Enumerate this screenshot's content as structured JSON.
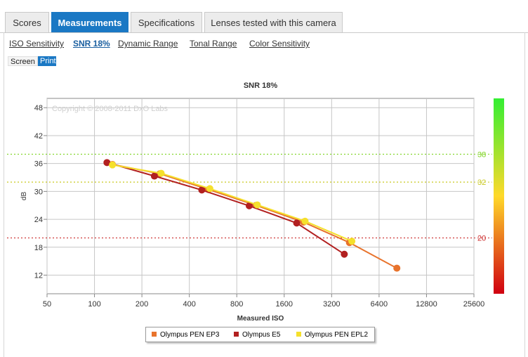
{
  "tabs": [
    {
      "label": "Scores",
      "active": false
    },
    {
      "label": "Measurements",
      "active": true
    },
    {
      "label": "Specifications",
      "active": false
    },
    {
      "label": "Lenses tested with this camera",
      "active": false
    }
  ],
  "subnav": [
    {
      "label": "ISO Sensitivity",
      "active": false
    },
    {
      "label": "SNR 18%",
      "active": true
    },
    {
      "label": "Dynamic Range",
      "active": false
    },
    {
      "label": "Tonal Range",
      "active": false
    },
    {
      "label": "Color Sensitivity",
      "active": false
    }
  ],
  "view_modes": {
    "screen": "Screen",
    "print": "Print",
    "selected": "Print"
  },
  "chart_data": {
    "type": "line",
    "title": "SNR 18%",
    "xlabel": "Measured ISO",
    "ylabel": "dB",
    "watermark": "Copyright © 2008-2011 DxO Labs",
    "x_scale": "log2",
    "xlim": [
      50,
      25600
    ],
    "ylim": [
      8,
      50
    ],
    "xticks": [
      50,
      100,
      200,
      400,
      800,
      1600,
      3200,
      6400,
      12800,
      25600
    ],
    "yticks": [
      12,
      18,
      24,
      30,
      36,
      42,
      48
    ],
    "grid": true,
    "legend_position": "bottom",
    "series": [
      {
        "name": "Olympus PEN EP3",
        "color": "#e8732c",
        "points": [
          [
            130,
            35.8
          ],
          [
            260,
            33.8
          ],
          [
            530,
            30.4
          ],
          [
            1060,
            27.0
          ],
          [
            2120,
            23.4
          ],
          [
            4150,
            19.0
          ],
          [
            8300,
            13.5
          ]
        ]
      },
      {
        "name": "Olympus E5",
        "color": "#b22020",
        "points": [
          [
            120,
            36.2
          ],
          [
            240,
            33.3
          ],
          [
            480,
            30.3
          ],
          [
            960,
            26.9
          ],
          [
            1920,
            23.2
          ],
          [
            3850,
            16.5
          ]
        ]
      },
      {
        "name": "Olympus PEN EPL2",
        "color": "#f5e02c",
        "points": [
          [
            130,
            35.7
          ],
          [
            265,
            33.9
          ],
          [
            540,
            30.6
          ],
          [
            1080,
            27.1
          ],
          [
            2170,
            23.6
          ],
          [
            4300,
            19.3
          ]
        ]
      }
    ],
    "reference_lines": [
      {
        "value": 38,
        "label": "38",
        "color": "#7ed321"
      },
      {
        "value": 32,
        "label": "32",
        "color": "#c8c81e"
      },
      {
        "value": 20,
        "label": "20",
        "color": "#cc2a2a"
      }
    ],
    "color_scale": {
      "top_color": "#33ee33",
      "mid_color": "#ffd92a",
      "bottom_color": "#d00010"
    }
  }
}
